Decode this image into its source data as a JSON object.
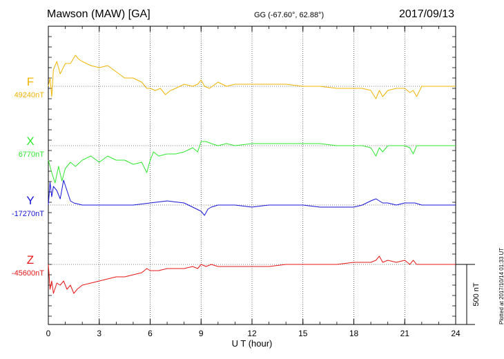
{
  "header": {
    "title": "Mawson (MAW)  [GA]",
    "coords": "GG (-67.60°,  62.88°)",
    "date": "2017/09/13"
  },
  "footer": {
    "plotted": "Plotted at 2017/10/14 01:33 UT"
  },
  "chart_data": {
    "type": "line",
    "xlabel": "U T (hour)",
    "xlim": [
      0,
      24
    ],
    "xticks": [
      "0",
      "3",
      "6",
      "9",
      "12",
      "15",
      "18",
      "21",
      "24"
    ],
    "grid": true,
    "scale_bar": {
      "label": "500 nT",
      "value_nT": 500
    },
    "series": [
      {
        "name": "F",
        "baseline_label": "49240nT",
        "baseline_nT": 49240,
        "color": "#f0b400",
        "x": [
          0,
          0.1,
          0.2,
          0.3,
          0.5,
          0.7,
          1.0,
          1.3,
          1.6,
          1.8,
          2.0,
          2.5,
          3.0,
          3.5,
          4.0,
          4.5,
          5.0,
          5.5,
          5.8,
          6.0,
          6.3,
          6.6,
          6.9,
          7.2,
          7.5,
          8.0,
          8.5,
          8.8,
          9.0,
          9.2,
          9.5,
          10.0,
          10.5,
          11.0,
          12.0,
          13.0,
          14.0,
          15.0,
          16.0,
          17.0,
          18.0,
          18.5,
          19.0,
          19.3,
          19.5,
          19.7,
          20.0,
          20.5,
          21.0,
          21.3,
          21.5,
          21.7,
          22.0,
          23.0,
          24.0
        ],
        "values": [
          49240,
          49280,
          49190,
          49320,
          49360,
          49300,
          49350,
          49350,
          49390,
          49370,
          49360,
          49340,
          49330,
          49340,
          49310,
          49280,
          49280,
          49260,
          49230,
          49230,
          49220,
          49230,
          49200,
          49220,
          49230,
          49250,
          49240,
          49250,
          49270,
          49240,
          49230,
          49260,
          49240,
          49250,
          49250,
          49250,
          49250,
          49240,
          49240,
          49230,
          49230,
          49230,
          49220,
          49180,
          49220,
          49190,
          49220,
          49230,
          49230,
          49210,
          49220,
          49190,
          49240,
          49240,
          49240
        ]
      },
      {
        "name": "X",
        "baseline_label": "6770nT",
        "baseline_nT": 6770,
        "color": "#2ee82e",
        "x": [
          0,
          0.2,
          0.4,
          0.6,
          0.8,
          1.0,
          1.3,
          1.6,
          2.0,
          2.5,
          3.0,
          3.5,
          4.0,
          4.5,
          5.0,
          5.5,
          5.8,
          6.0,
          6.2,
          6.5,
          7.0,
          7.5,
          8.0,
          8.5,
          8.8,
          9.0,
          9.3,
          9.6,
          10.0,
          10.5,
          11.0,
          12.0,
          13.0,
          14.0,
          15.0,
          16.0,
          17.0,
          18.0,
          18.5,
          19.0,
          19.3,
          19.5,
          19.7,
          20.0,
          20.5,
          21.0,
          21.3,
          21.5,
          21.7,
          22.0,
          23.0,
          24.0
        ],
        "values": [
          6700,
          6640,
          6590,
          6670,
          6600,
          6660,
          6690,
          6670,
          6700,
          6720,
          6690,
          6720,
          6700,
          6700,
          6680,
          6690,
          6640,
          6700,
          6740,
          6720,
          6730,
          6730,
          6740,
          6760,
          6740,
          6790,
          6790,
          6780,
          6770,
          6780,
          6770,
          6780,
          6780,
          6780,
          6780,
          6780,
          6770,
          6770,
          6770,
          6760,
          6720,
          6760,
          6740,
          6770,
          6770,
          6770,
          6760,
          6730,
          6770,
          6770,
          6770,
          6770
        ]
      },
      {
        "name": "Y",
        "baseline_label": "-17270nT",
        "baseline_nT": -17270,
        "color": "#1414d8",
        "x": [
          0,
          0.1,
          0.2,
          0.3,
          0.5,
          0.7,
          0.9,
          1.1,
          1.3,
          1.5,
          2.0,
          3.0,
          4.0,
          5.0,
          6.0,
          7.0,
          8.0,
          8.5,
          9.0,
          9.2,
          9.4,
          9.6,
          10.0,
          11.0,
          12.0,
          13.0,
          14.0,
          15.0,
          16.0,
          17.0,
          18.0,
          18.5,
          19.0,
          19.3,
          19.5,
          19.7,
          20.0,
          20.5,
          21.0,
          21.3,
          21.6,
          22.0,
          23.0,
          24.0
        ],
        "values": [
          -17270,
          -17160,
          -17230,
          -17180,
          -17200,
          -17240,
          -17150,
          -17200,
          -17250,
          -17260,
          -17270,
          -17270,
          -17270,
          -17270,
          -17260,
          -17250,
          -17260,
          -17280,
          -17300,
          -17320,
          -17290,
          -17280,
          -17270,
          -17270,
          -17280,
          -17270,
          -17270,
          -17270,
          -17280,
          -17280,
          -17280,
          -17270,
          -17250,
          -17240,
          -17250,
          -17260,
          -17260,
          -17270,
          -17260,
          -17260,
          -17260,
          -17270,
          -17270,
          -17270
        ]
      },
      {
        "name": "Z",
        "baseline_label": "-45600nT",
        "baseline_nT": -45600,
        "color": "#e81414",
        "x": [
          0,
          0.1,
          0.2,
          0.3,
          0.5,
          0.7,
          0.9,
          1.1,
          1.3,
          1.5,
          1.7,
          2.0,
          2.5,
          3.0,
          3.5,
          4.0,
          4.5,
          5.0,
          5.5,
          5.8,
          6.0,
          6.5,
          7.0,
          7.5,
          8.0,
          8.5,
          8.8,
          9.0,
          9.3,
          9.6,
          10.0,
          11.0,
          12.0,
          13.0,
          14.0,
          15.0,
          16.0,
          17.0,
          18.0,
          18.5,
          19.0,
          19.3,
          19.5,
          19.7,
          20.0,
          20.5,
          21.0,
          21.3,
          21.5,
          21.7,
          22.0,
          23.0,
          24.0
        ],
        "values": [
          -45600,
          -45720,
          -45680,
          -45740,
          -45690,
          -45700,
          -45680,
          -45720,
          -45700,
          -45740,
          -45720,
          -45700,
          -45690,
          -45680,
          -45670,
          -45660,
          -45660,
          -45650,
          -45640,
          -45620,
          -45630,
          -45630,
          -45620,
          -45620,
          -45620,
          -45610,
          -45620,
          -45600,
          -45610,
          -45600,
          -45610,
          -45610,
          -45610,
          -45610,
          -45600,
          -45600,
          -45600,
          -45600,
          -45590,
          -45590,
          -45590,
          -45580,
          -45560,
          -45590,
          -45580,
          -45590,
          -45580,
          -45600,
          -45580,
          -45600,
          -45600,
          -45600,
          -45600
        ]
      }
    ]
  }
}
